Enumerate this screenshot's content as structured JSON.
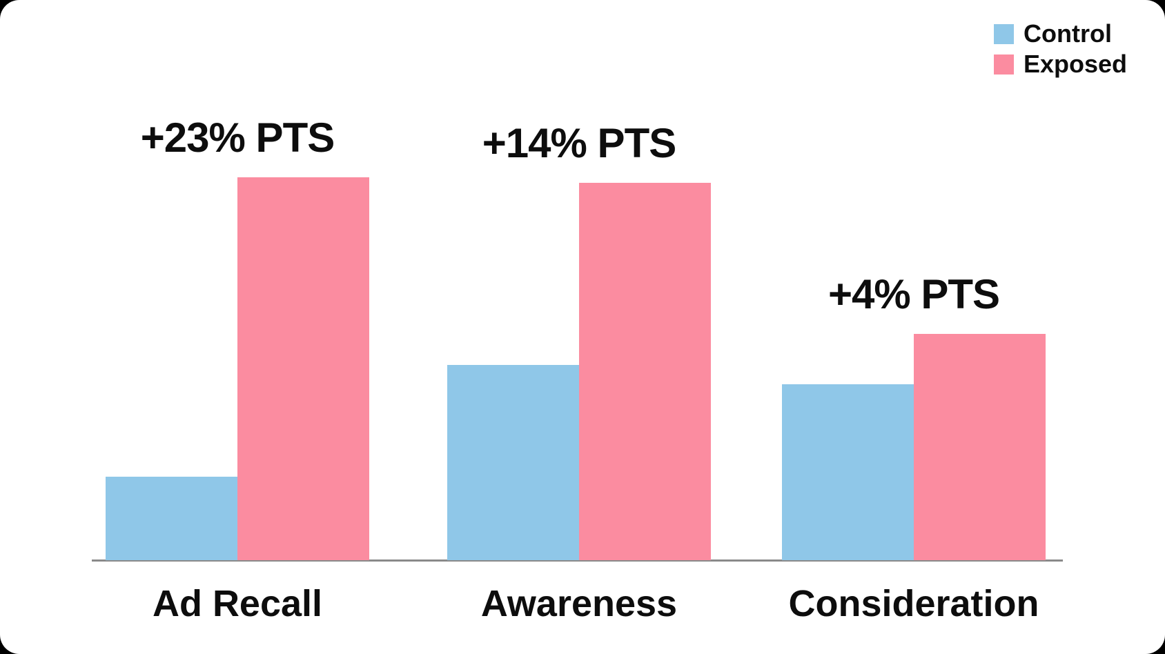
{
  "page": {
    "background": "#000000",
    "card_color": "#ffffff"
  },
  "legend": {
    "position": "top-right",
    "items": [
      {
        "label": "Control",
        "color": "#8FC7E8"
      },
      {
        "label": "Exposed",
        "color": "#FB8CA0"
      }
    ]
  },
  "chart_data": {
    "type": "bar",
    "title": "",
    "xlabel": "",
    "ylabel": "",
    "unit": "percentage points",
    "categories": [
      "Ad Recall",
      "Awareness",
      "Consideration"
    ],
    "series": [
      {
        "name": "Control",
        "color": "#8FC7E8",
        "values": [
          6.4,
          15.0,
          13.5
        ]
      },
      {
        "name": "Exposed",
        "color": "#FB8CA0",
        "values": [
          29.4,
          29.0,
          17.4
        ]
      }
    ],
    "annotations": [
      "+23% PTS",
      "+14% PTS",
      "+4% PTS"
    ],
    "ylim": [
      0,
      32
    ],
    "grid": false,
    "y_axis_shown": false,
    "legend_position": "top-right",
    "axis_color": "#8A8A8A",
    "text_color": "#0D0D0D"
  }
}
